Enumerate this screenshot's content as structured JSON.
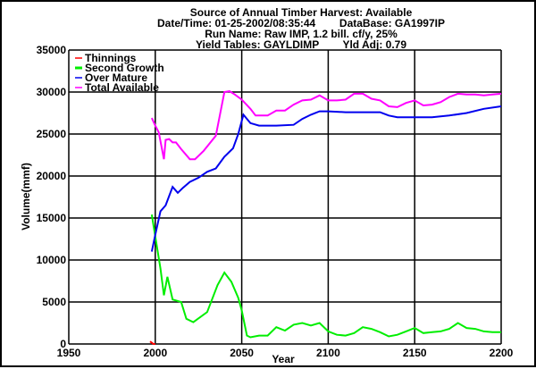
{
  "chart_data": {
    "type": "line",
    "title_lines": [
      "Source of Annual Timber Harvest: Available",
      "Date/Time: 01-25-2002/08:35:44        DataBase: GA1997IP",
      "Run Name: Raw IMP, 1.2 bill. cf/y, 25%",
      "Yield Tables: GAYLDIMP        Yld Adj: 0.79"
    ],
    "xlabel": "Year",
    "ylabel": "Volume(mmf)",
    "xlim": [
      1950,
      2200
    ],
    "ylim": [
      0,
      35000
    ],
    "xticks": [
      1950,
      2000,
      2050,
      2100,
      2150,
      2200
    ],
    "yticks": [
      0,
      5000,
      10000,
      15000,
      20000,
      25000,
      30000,
      35000
    ],
    "grid": true,
    "legend_position": "top-left",
    "series": [
      {
        "name": "Thinnings",
        "color": "#ff0000",
        "points": [
          [
            1997,
            300
          ],
          [
            1999,
            0
          ],
          [
            2000,
            0
          ]
        ]
      },
      {
        "name": "Second Growth",
        "color": "#00ee00",
        "points": [
          [
            1998,
            15400
          ],
          [
            2000,
            12800
          ],
          [
            2003,
            9000
          ],
          [
            2005,
            5800
          ],
          [
            2007,
            8000
          ],
          [
            2010,
            5300
          ],
          [
            2015,
            5000
          ],
          [
            2018,
            3000
          ],
          [
            2022,
            2600
          ],
          [
            2030,
            3800
          ],
          [
            2036,
            7000
          ],
          [
            2040,
            8500
          ],
          [
            2044,
            7400
          ],
          [
            2048,
            5500
          ],
          [
            2050,
            4000
          ],
          [
            2053,
            1000
          ],
          [
            2055,
            800
          ],
          [
            2060,
            1000
          ],
          [
            2065,
            1000
          ],
          [
            2070,
            2000
          ],
          [
            2075,
            1600
          ],
          [
            2080,
            2300
          ],
          [
            2085,
            2500
          ],
          [
            2090,
            2200
          ],
          [
            2095,
            2500
          ],
          [
            2100,
            1500
          ],
          [
            2105,
            1100
          ],
          [
            2110,
            1000
          ],
          [
            2115,
            1300
          ],
          [
            2120,
            2000
          ],
          [
            2125,
            1800
          ],
          [
            2130,
            1400
          ],
          [
            2135,
            900
          ],
          [
            2140,
            1100
          ],
          [
            2145,
            1500
          ],
          [
            2150,
            1900
          ],
          [
            2155,
            1300
          ],
          [
            2160,
            1400
          ],
          [
            2165,
            1500
          ],
          [
            2170,
            1800
          ],
          [
            2175,
            2500
          ],
          [
            2180,
            1900
          ],
          [
            2185,
            1800
          ],
          [
            2190,
            1500
          ],
          [
            2195,
            1400
          ],
          [
            2200,
            1400
          ]
        ]
      },
      {
        "name": "Over Mature",
        "color": "#0000ee",
        "points": [
          [
            1998,
            11000
          ],
          [
            2000,
            13000
          ],
          [
            2003,
            15800
          ],
          [
            2006,
            16500
          ],
          [
            2010,
            18700
          ],
          [
            2013,
            18000
          ],
          [
            2016,
            18600
          ],
          [
            2020,
            19300
          ],
          [
            2025,
            19800
          ],
          [
            2030,
            20500
          ],
          [
            2035,
            20900
          ],
          [
            2040,
            22300
          ],
          [
            2045,
            23300
          ],
          [
            2048,
            25000
          ],
          [
            2051,
            27300
          ],
          [
            2055,
            26300
          ],
          [
            2060,
            26000
          ],
          [
            2070,
            26000
          ],
          [
            2080,
            26100
          ],
          [
            2085,
            26800
          ],
          [
            2090,
            27300
          ],
          [
            2095,
            27700
          ],
          [
            2100,
            27700
          ],
          [
            2110,
            27600
          ],
          [
            2120,
            27600
          ],
          [
            2130,
            27600
          ],
          [
            2135,
            27200
          ],
          [
            2140,
            27000
          ],
          [
            2150,
            27000
          ],
          [
            2160,
            27000
          ],
          [
            2170,
            27200
          ],
          [
            2180,
            27500
          ],
          [
            2190,
            28000
          ],
          [
            2200,
            28300
          ]
        ]
      },
      {
        "name": "Total Available",
        "color": "#ff00ff",
        "points": [
          [
            1998,
            26900
          ],
          [
            2000,
            26000
          ],
          [
            2002,
            25200
          ],
          [
            2005,
            22000
          ],
          [
            2006,
            24300
          ],
          [
            2008,
            24400
          ],
          [
            2010,
            24000
          ],
          [
            2012,
            24000
          ],
          [
            2015,
            23200
          ],
          [
            2020,
            22000
          ],
          [
            2023,
            22000
          ],
          [
            2028,
            23000
          ],
          [
            2035,
            24800
          ],
          [
            2040,
            30000
          ],
          [
            2043,
            30100
          ],
          [
            2046,
            29700
          ],
          [
            2050,
            29100
          ],
          [
            2055,
            28000
          ],
          [
            2058,
            27200
          ],
          [
            2065,
            27200
          ],
          [
            2070,
            27800
          ],
          [
            2075,
            27800
          ],
          [
            2080,
            28500
          ],
          [
            2085,
            29000
          ],
          [
            2090,
            29100
          ],
          [
            2095,
            29600
          ],
          [
            2100,
            29000
          ],
          [
            2105,
            29000
          ],
          [
            2110,
            29100
          ],
          [
            2115,
            29800
          ],
          [
            2120,
            29800
          ],
          [
            2125,
            29200
          ],
          [
            2130,
            29000
          ],
          [
            2135,
            28300
          ],
          [
            2140,
            28200
          ],
          [
            2145,
            28700
          ],
          [
            2150,
            29000
          ],
          [
            2155,
            28400
          ],
          [
            2160,
            28500
          ],
          [
            2165,
            28800
          ],
          [
            2170,
            29400
          ],
          [
            2175,
            29800
          ],
          [
            2180,
            29700
          ],
          [
            2185,
            29700
          ],
          [
            2190,
            29600
          ],
          [
            2195,
            29700
          ],
          [
            2200,
            29800
          ]
        ]
      }
    ]
  }
}
